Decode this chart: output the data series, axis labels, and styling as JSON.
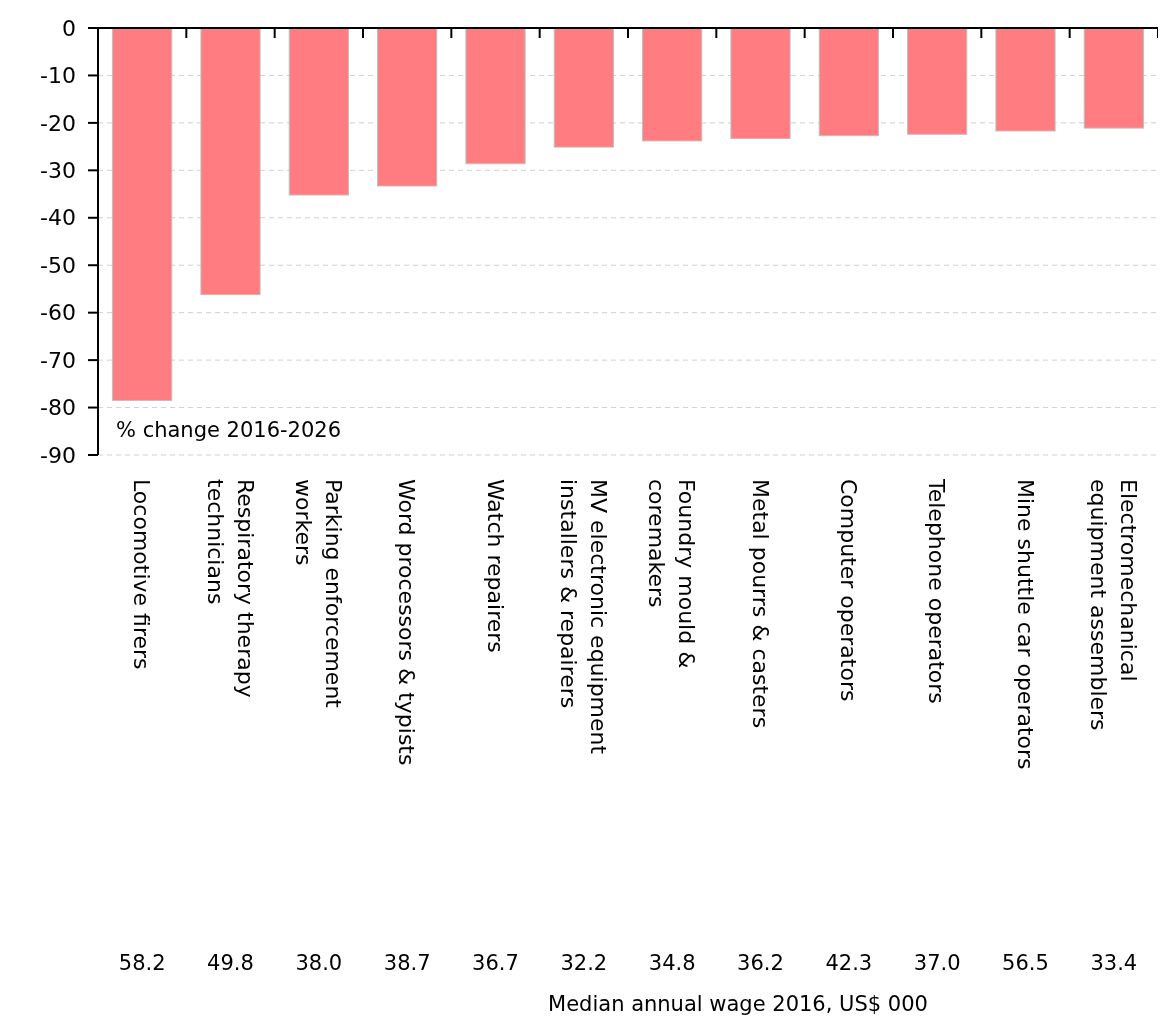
{
  "chart_data": {
    "type": "bar",
    "ylabel": "% change 2016-2026",
    "categories": [
      "Locomotive firers",
      "Respiratory therapy\ntechnicians",
      "Parking enforcement\nworkers",
      "Word processors & typists",
      "Watch repairers",
      "MV electronic equipment\ninstallers & repairers",
      "Foundry mould &\ncoremakers",
      "Metal pourrs & casters",
      "Computer operators",
      "Telephone operators",
      "Mine shuttle car operators",
      "Electromechanical\nequipment assemblers"
    ],
    "values": [
      -78.5,
      -56.2,
      -35.2,
      -33.3,
      -28.6,
      -25.1,
      -23.8,
      -23.3,
      -22.7,
      -22.4,
      -21.7,
      -21.1
    ],
    "color": "#ff7c80",
    "ylim": [
      -90,
      0
    ],
    "yticks": [
      0,
      -10,
      -20,
      -30,
      -40,
      -50,
      -60,
      -70,
      -80,
      -90
    ],
    "grid": "y",
    "annotations": [
      "58.2",
      "49.8",
      "38.0",
      "38.7",
      "36.7",
      "32.2",
      "34.8",
      "36.2",
      "42.3",
      "37.0",
      "56.5",
      "33.4",
      "Median annual wage 2016, US$ 000"
    ]
  }
}
